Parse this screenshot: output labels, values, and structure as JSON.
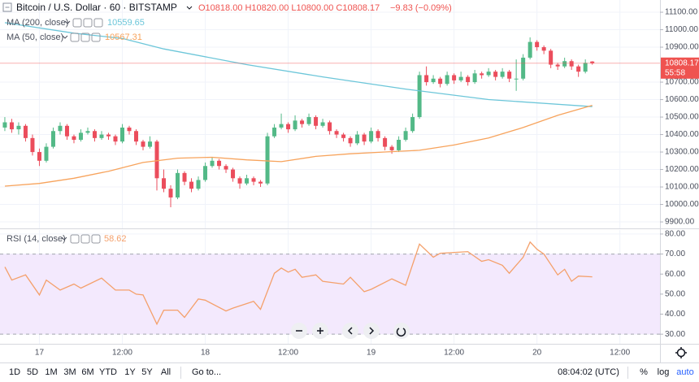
{
  "chart_data": [
    {
      "type": "candlestick",
      "title": "Bitcoin / U.S. Dollar · 60 · BITSTAMP",
      "ohlc_text": "O10818.00 H10820.00 L10800.00 C10808.17",
      "change_text": "−9.83 (−0.09%)",
      "last_price_label": "10808.17",
      "countdown": "55:58",
      "colors": {
        "up": "#53b987",
        "down": "#eb4d5c",
        "last_price": "#ef5350"
      },
      "grid": true,
      "xlim": [
        -0.7,
        94.8
      ],
      "xticks": [
        {
          "value": 5,
          "label": "17"
        },
        {
          "value": 17,
          "label": "12:00"
        },
        {
          "value": 29,
          "label": "18"
        },
        {
          "value": 41,
          "label": "12:00"
        },
        {
          "value": 53,
          "label": "19"
        },
        {
          "value": 65,
          "label": "12:00"
        },
        {
          "value": 77,
          "label": "20"
        },
        {
          "value": 89,
          "label": "12:00"
        }
      ],
      "ylim": [
        9863,
        11170
      ],
      "yticks": [
        {
          "value": 11100,
          "label": "11100.00"
        },
        {
          "value": 11000,
          "label": "11000.00"
        },
        {
          "value": 10900,
          "label": "10900.00"
        },
        {
          "value": 10700,
          "label": "10700.00"
        },
        {
          "value": 10600,
          "label": "10600.00"
        },
        {
          "value": 10500,
          "label": "10500.00"
        },
        {
          "value": 10400,
          "label": "10400.00"
        },
        {
          "value": 10300,
          "label": "10300.00"
        },
        {
          "value": 10200,
          "label": "10200.00"
        },
        {
          "value": 10100,
          "label": "10100.00"
        },
        {
          "value": 10000,
          "label": "10000.00"
        },
        {
          "value": 9900,
          "label": "9900.00"
        }
      ],
      "ohlc": [
        [
          10440,
          10500,
          10420,
          10470
        ],
        [
          10470,
          10490,
          10410,
          10430
        ],
        [
          10430,
          10470,
          10400,
          10450
        ],
        [
          10450,
          10460,
          10360,
          10380
        ],
        [
          10380,
          10400,
          10280,
          10300
        ],
        [
          10300,
          10320,
          10220,
          10250
        ],
        [
          10250,
          10350,
          10240,
          10330
        ],
        [
          10330,
          10440,
          10320,
          10420
        ],
        [
          10420,
          10470,
          10400,
          10450
        ],
        [
          10450,
          10460,
          10370,
          10390
        ],
        [
          10390,
          10400,
          10350,
          10370
        ],
        [
          10370,
          10430,
          10360,
          10410
        ],
        [
          10410,
          10440,
          10400,
          10420
        ],
        [
          10420,
          10430,
          10360,
          10380
        ],
        [
          10380,
          10420,
          10370,
          10400
        ],
        [
          10400,
          10410,
          10370,
          10390
        ],
        [
          10390,
          10400,
          10340,
          10360
        ],
        [
          10360,
          10460,
          10350,
          10440
        ],
        [
          10440,
          10450,
          10400,
          10420
        ],
        [
          10420,
          10430,
          10340,
          10360
        ],
        [
          10360,
          10370,
          10310,
          10330
        ],
        [
          10330,
          10390,
          10320,
          10360
        ],
        [
          10360,
          10370,
          10080,
          10150
        ],
        [
          10150,
          10200,
          10070,
          10090
        ],
        [
          10090,
          10110,
          9984,
          10040
        ],
        [
          10040,
          10200,
          10030,
          10180
        ],
        [
          10180,
          10190,
          10110,
          10130
        ],
        [
          10130,
          10150,
          10070,
          10090
        ],
        [
          10090,
          10160,
          10080,
          10140
        ],
        [
          10140,
          10240,
          10130,
          10220
        ],
        [
          10220,
          10270,
          10210,
          10250
        ],
        [
          10250,
          10260,
          10200,
          10220
        ],
        [
          10220,
          10230,
          10180,
          10200
        ],
        [
          10200,
          10210,
          10130,
          10150
        ],
        [
          10150,
          10160,
          10090,
          10120
        ],
        [
          10120,
          10170,
          10110,
          10150
        ],
        [
          10150,
          10160,
          10110,
          10130
        ],
        [
          10130,
          10140,
          10100,
          10120
        ],
        [
          10120,
          10410,
          10110,
          10390
        ],
        [
          10390,
          10460,
          10380,
          10440
        ],
        [
          10440,
          10520,
          10430,
          10460
        ],
        [
          10460,
          10470,
          10410,
          10430
        ],
        [
          10430,
          10510,
          10420,
          10480
        ],
        [
          10480,
          10490,
          10440,
          10460
        ],
        [
          10460,
          10520,
          10450,
          10500
        ],
        [
          10500,
          10510,
          10430,
          10450
        ],
        [
          10450,
          10490,
          10440,
          10470
        ],
        [
          10470,
          10480,
          10400,
          10420
        ],
        [
          10420,
          10430,
          10380,
          10400
        ],
        [
          10400,
          10410,
          10360,
          10380
        ],
        [
          10380,
          10390,
          10330,
          10350
        ],
        [
          10350,
          10420,
          10340,
          10400
        ],
        [
          10400,
          10410,
          10340,
          10360
        ],
        [
          10360,
          10440,
          10350,
          10420
        ],
        [
          10420,
          10430,
          10360,
          10380
        ],
        [
          10380,
          10390,
          10310,
          10330
        ],
        [
          10330,
          10340,
          10290,
          10310
        ],
        [
          10310,
          10390,
          10300,
          10370
        ],
        [
          10370,
          10440,
          10360,
          10420
        ],
        [
          10420,
          10520,
          10410,
          10500
        ],
        [
          10500,
          10760,
          10490,
          10740
        ],
        [
          10740,
          10790,
          10680,
          10700
        ],
        [
          10700,
          10740,
          10690,
          10720
        ],
        [
          10720,
          10730,
          10670,
          10690
        ],
        [
          10690,
          10760,
          10680,
          10740
        ],
        [
          10740,
          10750,
          10690,
          10710
        ],
        [
          10710,
          10760,
          10700,
          10730
        ],
        [
          10730,
          10740,
          10680,
          10700
        ],
        [
          10700,
          10770,
          10690,
          10750
        ],
        [
          10750,
          10760,
          10720,
          10740
        ],
        [
          10740,
          10780,
          10730,
          10760
        ],
        [
          10760,
          10770,
          10710,
          10730
        ],
        [
          10730,
          10780,
          10720,
          10760
        ],
        [
          10760,
          10770,
          10700,
          10720
        ],
        [
          10720,
          10830,
          10650,
          10720
        ],
        [
          10720,
          10860,
          10710,
          10840
        ],
        [
          10840,
          10956,
          10830,
          10930
        ],
        [
          10930,
          10940,
          10880,
          10900
        ],
        [
          10900,
          10910,
          10860,
          10880
        ],
        [
          10880,
          10890,
          10780,
          10800
        ],
        [
          10800,
          10810,
          10770,
          10790
        ],
        [
          10790,
          10840,
          10780,
          10820
        ],
        [
          10820,
          10830,
          10770,
          10790
        ],
        [
          10790,
          10800,
          10730,
          10760
        ],
        [
          10760,
          10830,
          10750,
          10810
        ],
        [
          10818,
          10820,
          10800,
          10808.17
        ]
      ],
      "overlays": [
        {
          "name": "MA (200, close)",
          "value_label": "10559.65",
          "color": "#6cc6d9",
          "x": [
            0,
            10,
            17,
            23,
            35,
            46,
            58,
            70,
            85
          ],
          "values": [
            11040,
            10980,
            10950,
            10890,
            10800,
            10730,
            10660,
            10600,
            10559.65
          ]
        },
        {
          "name": "MA (50, close)",
          "value_label": "10567.31",
          "color": "#f7a35c",
          "x": [
            0,
            5,
            10,
            15,
            20,
            25,
            30,
            35,
            40,
            45,
            50,
            55,
            60,
            65,
            70,
            75,
            80,
            85
          ],
          "values": [
            10105,
            10120,
            10150,
            10190,
            10240,
            10265,
            10270,
            10255,
            10245,
            10275,
            10290,
            10300,
            10310,
            10340,
            10380,
            10440,
            10510,
            10567.31
          ]
        }
      ]
    },
    {
      "type": "line",
      "title": "RSI (14, close)",
      "value_label": "58.62",
      "color": "#f4a06b",
      "band": [
        30,
        70
      ],
      "band_color": "#f3e9fd",
      "xlim": [
        -0.7,
        94.8
      ],
      "ylim": [
        25.2,
        82
      ],
      "yticks": [
        {
          "value": 80,
          "label": "80.00"
        },
        {
          "value": 70,
          "label": "70.00"
        },
        {
          "value": 60,
          "label": "60.00"
        },
        {
          "value": 50,
          "label": "50.00"
        },
        {
          "value": 40,
          "label": "40.00"
        },
        {
          "value": 30,
          "label": "30.00"
        }
      ],
      "x": [
        0,
        1,
        3,
        5,
        6,
        8,
        10,
        11,
        14,
        16,
        18,
        19,
        20,
        22,
        23,
        25,
        26,
        28,
        29,
        32,
        33,
        36,
        37,
        39,
        40,
        41,
        42,
        43,
        45,
        46,
        49,
        50,
        52,
        53,
        56,
        58,
        60,
        62,
        63,
        67,
        69,
        70,
        72,
        73,
        75,
        76,
        77,
        78,
        80,
        81,
        82,
        83,
        85
      ],
      "values": [
        63.6,
        57,
        59.6,
        49.6,
        57,
        52,
        55,
        53,
        58,
        52,
        52,
        50,
        49.6,
        35,
        42,
        42,
        38.4,
        47.6,
        47,
        41.6,
        43,
        46.4,
        42.4,
        60.4,
        63,
        61,
        62.4,
        58.4,
        59.6,
        56.4,
        55,
        58.4,
        51.2,
        52.4,
        57.6,
        54.4,
        75,
        68.4,
        70.4,
        71.2,
        66.4,
        67.2,
        64.4,
        60.4,
        68.4,
        76,
        72.4,
        70,
        59.6,
        62.4,
        56.4,
        59,
        58.62
      ]
    }
  ],
  "toolbar": {
    "ranges": [
      "1D",
      "5D",
      "1M",
      "3M",
      "6M",
      "YTD",
      "1Y",
      "5Y",
      "All"
    ],
    "goto": "Go to...",
    "clock": "08:04:02 (UTC)",
    "percent": "%",
    "log": "log",
    "auto": "auto"
  }
}
